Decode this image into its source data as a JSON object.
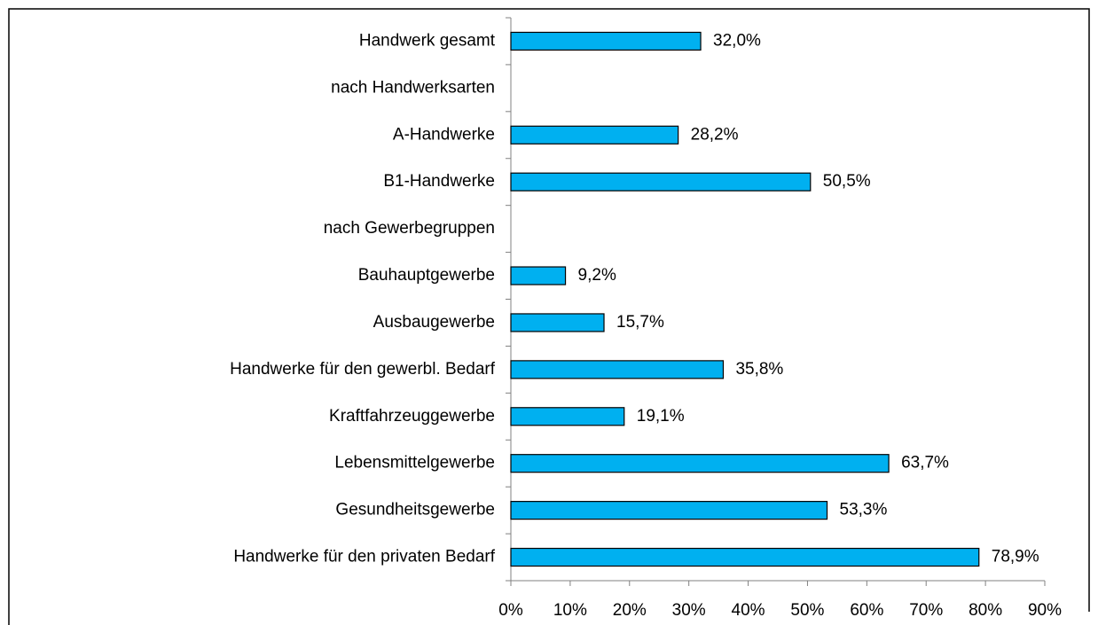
{
  "chart_data": {
    "type": "bar",
    "orientation": "horizontal",
    "categories": [
      "Handwerk gesamt",
      "nach Handwerksarten",
      "A-Handwerke",
      "B1-Handwerke",
      "nach Gewerbegruppen",
      "Bauhauptgewerbe",
      "Ausbaugewerbe",
      "Handwerke für den gewerbl. Bedarf",
      "Kraftfahrzeuggewerbe",
      "Lebensmittelgewerbe",
      "Gesundheitsgewerbe",
      "Handwerke für den privaten Bedarf"
    ],
    "values": [
      32.0,
      null,
      28.2,
      50.5,
      null,
      9.2,
      15.7,
      35.8,
      19.1,
      63.7,
      53.3,
      78.9
    ],
    "value_labels": [
      "32,0%",
      null,
      "28,2%",
      "50,5%",
      null,
      "9,2%",
      "15,7%",
      "35,8%",
      "19,1%",
      "63,7%",
      "53,3%",
      "78,9%"
    ],
    "color": "#00b0f0",
    "xlim": [
      0,
      90
    ],
    "xticks": [
      {
        "value": 0,
        "label": "0%"
      },
      {
        "value": 10,
        "label": "10%"
      },
      {
        "value": 20,
        "label": "20%"
      },
      {
        "value": 30,
        "label": "30%"
      },
      {
        "value": 40,
        "label": "40%"
      },
      {
        "value": 50,
        "label": "50%"
      },
      {
        "value": 60,
        "label": "60%"
      },
      {
        "value": 70,
        "label": "70%"
      },
      {
        "value": 80,
        "label": "80%"
      },
      {
        "value": 90,
        "label": "90%"
      }
    ],
    "grid": false
  }
}
